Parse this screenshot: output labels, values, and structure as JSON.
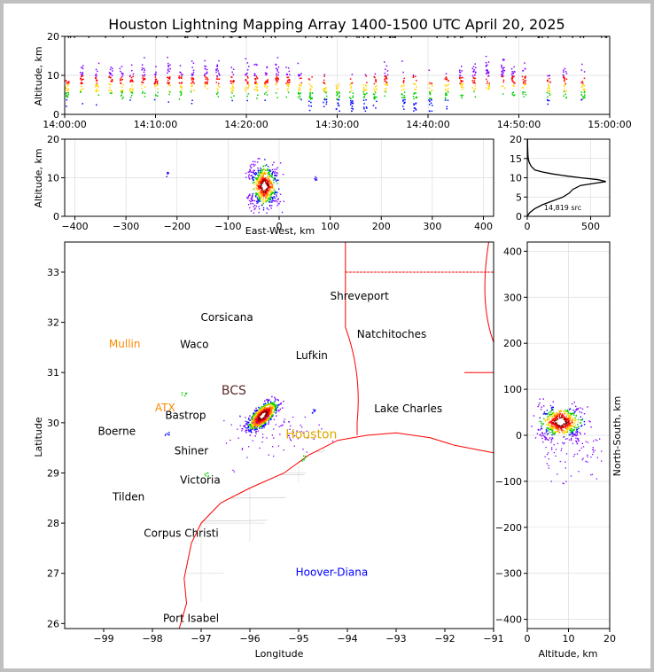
{
  "title": "Houston Lightning Mapping Array 1400-1500 UTC April 20, 2025",
  "colors": {
    "axes": "#000000",
    "grid": "#dddddd",
    "county_lines": "#bbbbbb",
    "coast_and_border": "#ff0000",
    "city_label": "#000000",
    "station_label_orange": "#ff8800",
    "hoover_diana": "#0000ff",
    "storm_colors": [
      "#0000ff",
      "#8000ff",
      "#00cc00",
      "#ffd700",
      "#ff8000",
      "#ff0000",
      "#8b0000",
      "#ffffff"
    ]
  },
  "chart_data": [
    {
      "type": "scatter",
      "panel": "altitude vs time",
      "ylabel": "Altitude, km",
      "xlabel": "",
      "xlim": [
        "14:00:00",
        "15:00:00"
      ],
      "ylim": [
        0,
        20
      ],
      "xticks": [
        "14:00:00",
        "14:10:00",
        "14:20:00",
        "14:30:00",
        "14:40:00",
        "14:50:00",
        "15:00:00"
      ],
      "yticks": [
        "0",
        "10",
        "20"
      ],
      "flash_times_min": [
        0.2,
        1.8,
        3.5,
        5.0,
        6.2,
        7.3,
        8.6,
        10.0,
        11.4,
        12.7,
        14.0,
        15.5,
        16.8,
        18.4,
        20.0,
        21.0,
        22.1,
        23.3,
        24.5,
        25.8,
        27.0,
        28.6,
        30.0,
        31.5,
        33.0,
        34.1,
        35.3,
        37.2,
        38.5,
        40.2,
        42.0,
        43.6,
        45.0,
        46.5,
        48.2,
        49.3,
        50.5,
        53.2,
        55.0,
        57.0
      ],
      "flash_center_alt_km": [
        6,
        9,
        8,
        9,
        7,
        9,
        9,
        8,
        10,
        8,
        9,
        10,
        9,
        8,
        9,
        8,
        8,
        9,
        8,
        7,
        6,
        6,
        5,
        5,
        5,
        6,
        9,
        7,
        5,
        5,
        7,
        9,
        9,
        10,
        10,
        9,
        9,
        7,
        8,
        8
      ],
      "grid": true
    },
    {
      "type": "scatter",
      "panel": "altitude vs east-west",
      "ylabel": "Altitude, km",
      "xlabel": "East-West, km",
      "xlim": [
        -420,
        420
      ],
      "ylim": [
        0,
        20
      ],
      "xticks": [
        "−400",
        "−300",
        "−200",
        "−100",
        "0",
        "100",
        "200",
        "300",
        "400"
      ],
      "yticks": [
        "0",
        "10",
        "20"
      ],
      "core_x_km": -30,
      "core_alt_km": 8,
      "outliers": [
        {
          "x": -220,
          "alt": 11
        },
        {
          "x": 70,
          "alt": 10
        }
      ],
      "grid": true
    },
    {
      "type": "line",
      "panel": "altitude histogram",
      "xlim": [
        0,
        650
      ],
      "ylim": [
        0,
        20
      ],
      "xticks": [
        "0",
        "500"
      ],
      "yticks": [
        "0",
        "5",
        "10",
        "15",
        "20"
      ],
      "x": [
        0,
        10,
        20,
        40,
        60,
        120,
        200,
        280,
        330,
        360,
        420,
        520,
        620,
        560,
        420,
        300,
        200,
        120,
        60,
        30,
        15,
        8,
        5,
        3,
        2
      ],
      "y": [
        0,
        0.5,
        1,
        1.5,
        2,
        3,
        4,
        5,
        6,
        7,
        8,
        8.5,
        9,
        9.5,
        10,
        10.5,
        11,
        11.5,
        12,
        13,
        14,
        15,
        16,
        18,
        20
      ],
      "annotation": "14,819 src",
      "grid": true
    },
    {
      "type": "scatter",
      "panel": "plan view map",
      "xlabel": "Longitude",
      "ylabel": "Latitude",
      "xlim": [
        -99.8,
        -91
      ],
      "ylim": [
        25.9,
        33.6
      ],
      "xticks": [
        "−99",
        "−98",
        "−97",
        "−96",
        "−95",
        "−94",
        "−93",
        "−92",
        "−91"
      ],
      "yticks": [
        "26",
        "27",
        "28",
        "29",
        "30",
        "31",
        "32",
        "33"
      ],
      "storm_center": {
        "lon": -95.75,
        "lat": 30.15
      },
      "cities": [
        {
          "name": "Shreveport",
          "lon": -93.75,
          "lat": 32.52
        },
        {
          "name": "Corsicana",
          "lon": -96.47,
          "lat": 32.1
        },
        {
          "name": "Mullin",
          "lon": -98.57,
          "lat": 31.57
        },
        {
          "name": "Waco",
          "lon": -97.14,
          "lat": 31.56
        },
        {
          "name": "Natchitoches",
          "lon": -93.09,
          "lat": 31.76
        },
        {
          "name": "Lufkin",
          "lon": -94.73,
          "lat": 31.34
        },
        {
          "name": "BCS",
          "lon": -96.33,
          "lat": 30.63
        },
        {
          "name": "ATX",
          "lon": -97.74,
          "lat": 30.3
        },
        {
          "name": "Bastrop",
          "lon": -97.32,
          "lat": 30.15
        },
        {
          "name": "Lake Charles",
          "lon": -92.75,
          "lat": 30.28
        },
        {
          "name": "Boerne",
          "lon": -98.73,
          "lat": 29.83
        },
        {
          "name": "Houston",
          "lon": -94.74,
          "lat": 29.76
        },
        {
          "name": "Shiner",
          "lon": -97.2,
          "lat": 29.44
        },
        {
          "name": "Victoria",
          "lon": -97.02,
          "lat": 28.86
        },
        {
          "name": "Tilden",
          "lon": -98.49,
          "lat": 28.52
        },
        {
          "name": "Corpus Christi",
          "lon": -97.41,
          "lat": 27.8
        },
        {
          "name": "Hoover-Diana",
          "lon": -94.32,
          "lat": 27.02
        },
        {
          "name": "Port Isabel",
          "lon": -97.21,
          "lat": 26.1
        }
      ],
      "grid": true
    },
    {
      "type": "scatter",
      "panel": "north-south vs altitude",
      "xlabel": "Altitude, km",
      "ylabel": "North-South, km",
      "xlim": [
        0,
        20
      ],
      "ylim": [
        -420,
        420
      ],
      "xticks": [
        "0",
        "10",
        "20"
      ],
      "yticks": [
        "−400",
        "−300",
        "−200",
        "−100",
        "0",
        "100",
        "200",
        "300",
        "400"
      ],
      "core_alt_km": 8,
      "core_ns_km": 30,
      "grid": true
    }
  ]
}
